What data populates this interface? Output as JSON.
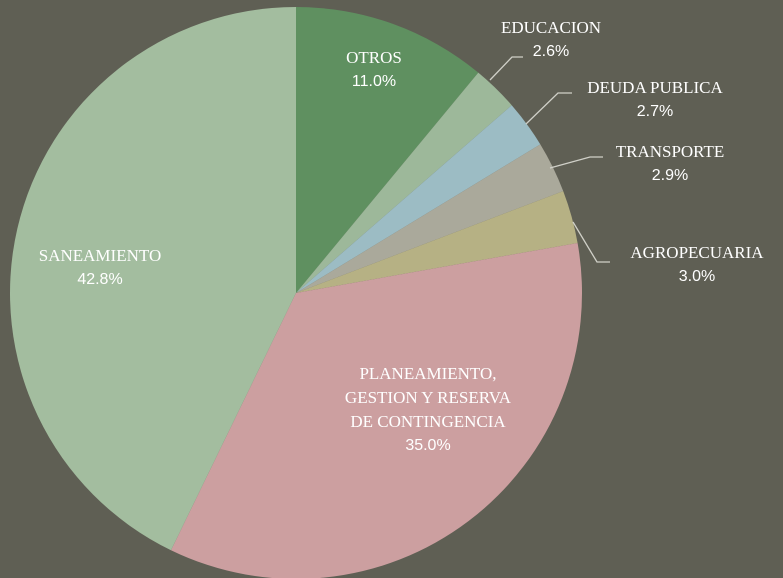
{
  "chart_data": {
    "type": "pie",
    "categories": [
      "OTROS",
      "EDUCACION",
      "DEUDA PUBLICA",
      "TRANSPORTE",
      "AGROPECUARIA",
      "PLANEAMIENTO, GESTION Y RESERVA DE CONTINGENCIA",
      "SANEAMIENTO"
    ],
    "values": [
      11.0,
      2.6,
      2.7,
      2.9,
      3.0,
      35.0,
      42.8
    ],
    "value_labels": [
      "11.0%",
      "2.6%",
      "2.7%",
      "2.9%",
      "3.0%",
      "35.0%",
      "42.8%"
    ],
    "colors": [
      "#5f9060",
      "#9db89a",
      "#9cbcc4",
      "#aaa99b",
      "#b6b184",
      "#cc9fa0",
      "#a3bd9f"
    ]
  }
}
